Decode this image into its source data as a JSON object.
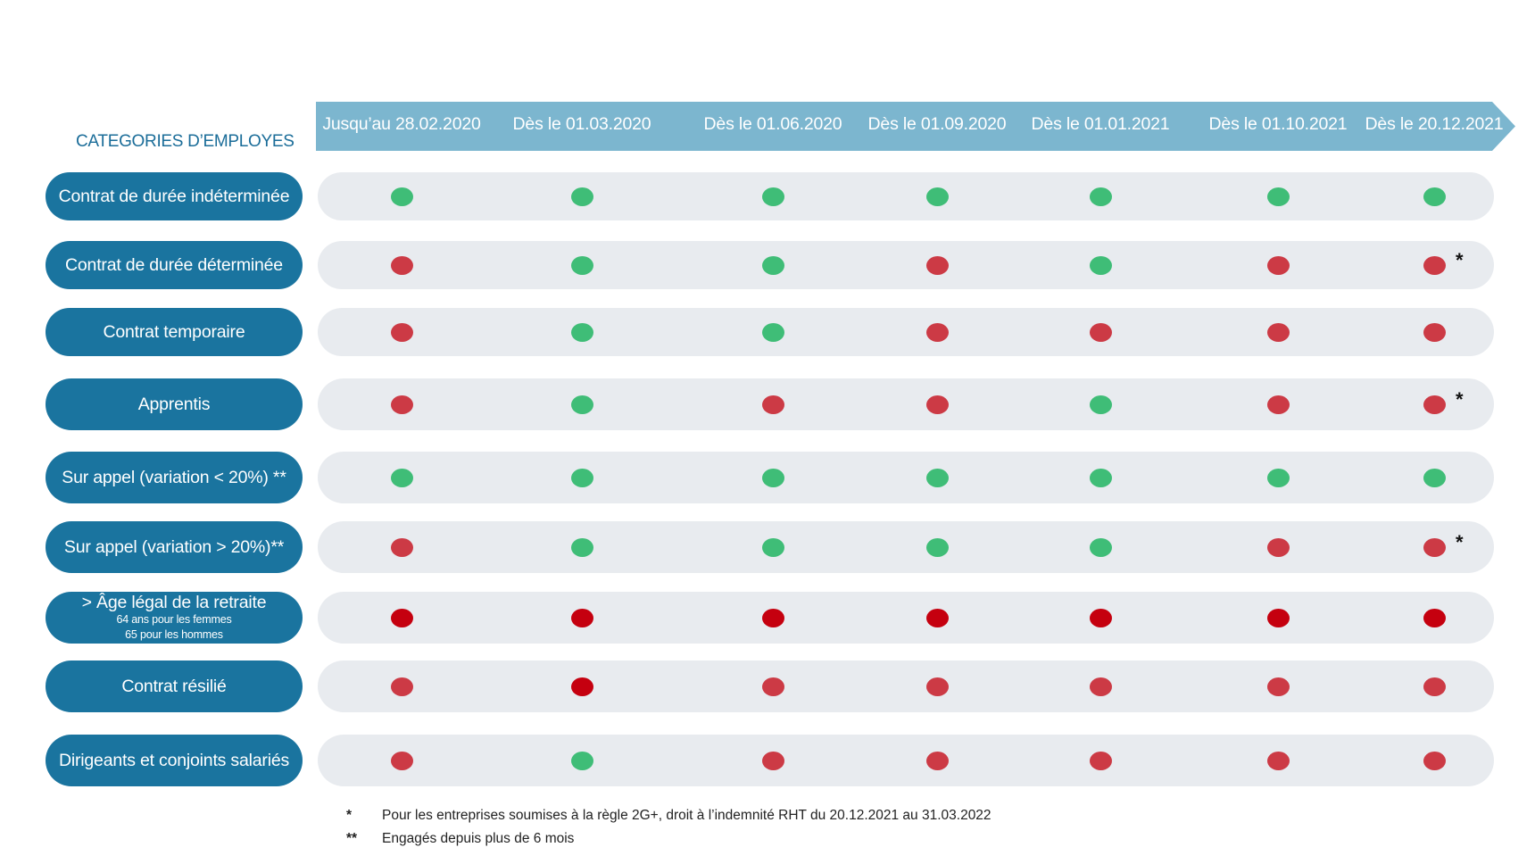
{
  "header_title": "CATEGORIES D’EMPLOYES",
  "periods": [
    "Jusqu’au 28.02.2020",
    "Dès le 01.03.2020",
    "Dès le 01.06.2020",
    "Dès le 01.09.2020",
    "Dès le 01.01.2021",
    "Dès le 01.10.2021",
    "Dès le 20.12.2021"
  ],
  "colors": {
    "timeline": "#7cb6cf",
    "pill": "#1a749f",
    "row_bg": "#e8ebef",
    "green": "#3fbd77",
    "red": "#cc3a45",
    "darkred": "#c5000f"
  },
  "rows": [
    {
      "label": "Contrat de durée indéterminée",
      "status": [
        "green",
        "green",
        "green",
        "green",
        "green",
        "green",
        "green"
      ],
      "note": ""
    },
    {
      "label": "Contrat de durée déterminée",
      "status": [
        "red",
        "green",
        "green",
        "red",
        "green",
        "red",
        "red"
      ],
      "note": "*"
    },
    {
      "label": "Contrat temporaire",
      "status": [
        "red",
        "green",
        "green",
        "red",
        "red",
        "red",
        "red"
      ],
      "note": ""
    },
    {
      "label": "Apprentis",
      "status": [
        "red",
        "green",
        "red",
        "red",
        "green",
        "red",
        "red"
      ],
      "note": "*"
    },
    {
      "label": "Sur appel (variation < 20%) **",
      "status": [
        "green",
        "green",
        "green",
        "green",
        "green",
        "green",
        "green"
      ],
      "note": ""
    },
    {
      "label": "Sur appel (variation > 20%)**",
      "status": [
        "red",
        "green",
        "green",
        "green",
        "green",
        "red",
        "red"
      ],
      "note": "*"
    },
    {
      "label": "> Âge légal de la retraite",
      "sub": [
        "64 ans pour les femmes",
        "65 pour les hommes"
      ],
      "status": [
        "darkred",
        "darkred",
        "darkred",
        "darkred",
        "darkred",
        "darkred",
        "darkred"
      ],
      "note": ""
    },
    {
      "label": "Contrat résilié",
      "status": [
        "red",
        "darkred",
        "red",
        "red",
        "red",
        "red",
        "red"
      ],
      "note": ""
    },
    {
      "label": "Dirigeants et conjoints salariés",
      "status": [
        "red",
        "green",
        "red",
        "red",
        "red",
        "red",
        "red"
      ],
      "note": ""
    }
  ],
  "footnotes": [
    {
      "symbol": "*",
      "text": "Pour les entreprises soumises à la règle 2G+, droit à l’indemnité RHT du 20.12.2021 au 31.03.2022"
    },
    {
      "symbol": "**",
      "text": "Engagés depuis plus de 6 mois"
    }
  ]
}
